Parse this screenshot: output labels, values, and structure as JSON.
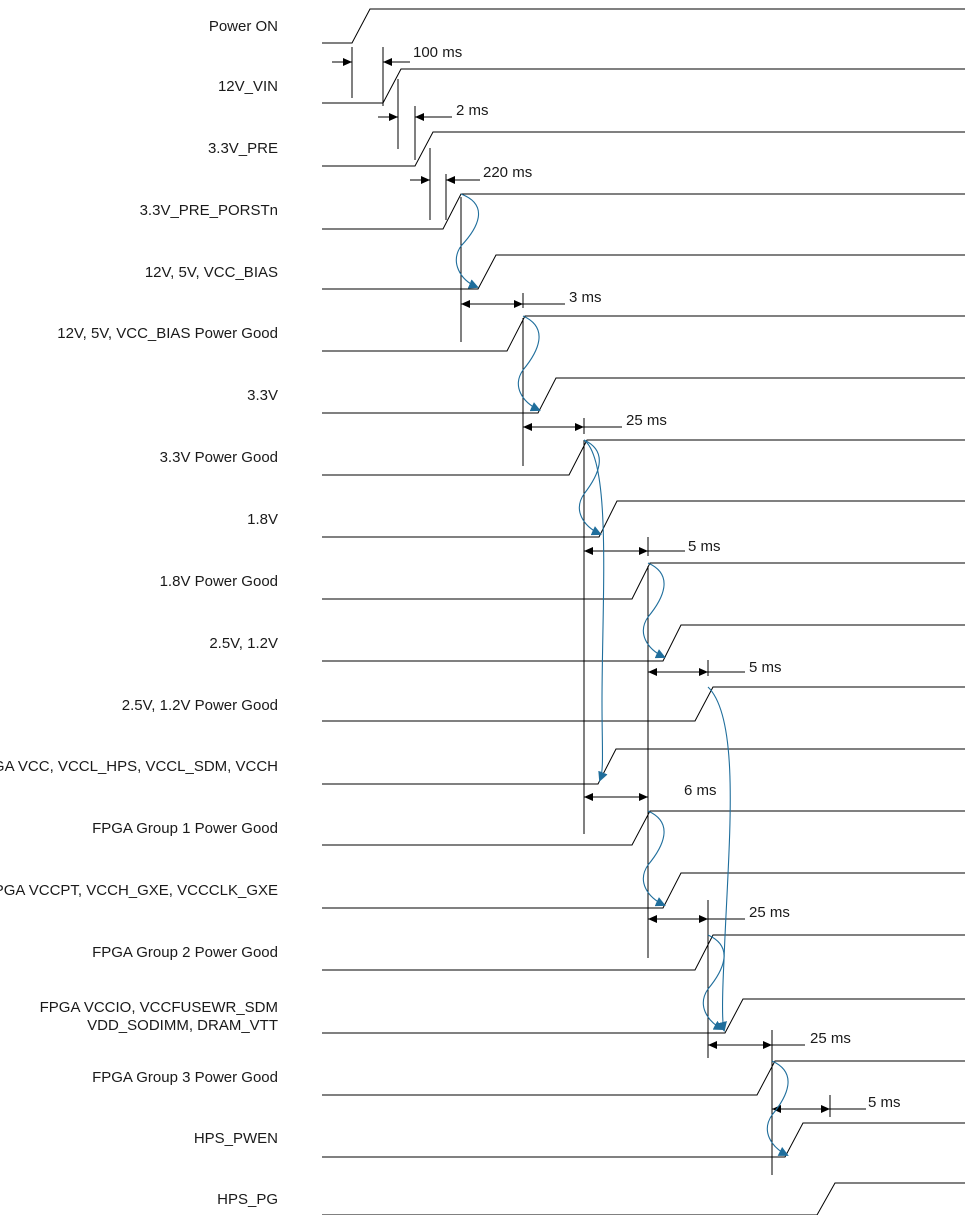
{
  "signals": [
    "Power ON",
    "12V_VIN",
    "3.3V_PRE",
    "3.3V_PRE_PORSTn",
    "12V, 5V, VCC_BIAS",
    "12V, 5V, VCC_BIAS Power Good",
    "3.3V",
    "3.3V Power Good",
    "1.8V",
    "1.8V Power Good",
    "2.5V, 1.2V",
    "2.5V, 1.2V Power Good",
    "FPGA VCC, VCCL_HPS, VCCL_SDM, VCCH",
    "FPGA Group 1 Power Good",
    "FPGA VCCPT, VCCH_GXE, VCCCLK_GXE",
    "FPGA Group 2 Power Good",
    "FPGA VCCIO, VCCFUSEWR_SDM\nVDD_SODIMM, DRAM_VTT",
    "FPGA Group 3 Power Good",
    "HPS_PWEN",
    "HPS_PG"
  ],
  "delays": [
    "100 ms",
    "2 ms",
    "220 ms",
    "3 ms",
    "25 ms",
    "5 ms",
    "5 ms",
    "6 ms",
    "25 ms",
    "25 ms",
    "5 ms"
  ],
  "colors": {
    "arrow": "#1f6e9c",
    "line": "#000000"
  }
}
